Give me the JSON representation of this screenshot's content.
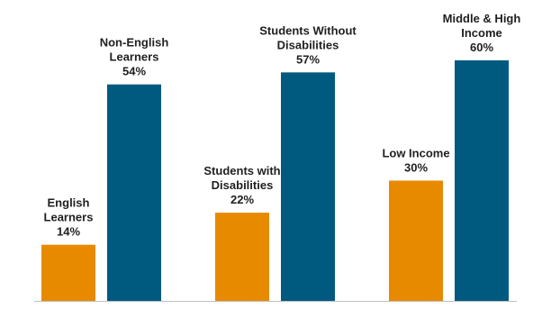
{
  "chart_data": {
    "type": "bar",
    "title": "",
    "xlabel": "",
    "ylabel": "",
    "ylim": [
      0,
      60
    ],
    "grid": false,
    "legend": "none",
    "colors": {
      "orange": "#E78A00",
      "blue": "#005A80",
      "axis": "#bfbfbf"
    },
    "groups": [
      {
        "bars": [
          {
            "label_lines": [
              "English",
              "Learners"
            ],
            "value": 14,
            "value_label": "14%",
            "color": "orange"
          },
          {
            "label_lines": [
              "Non-English",
              "Learners"
            ],
            "value": 54,
            "value_label": "54%",
            "color": "blue"
          }
        ]
      },
      {
        "bars": [
          {
            "label_lines": [
              "Students with",
              "Disabilities"
            ],
            "value": 22,
            "value_label": "22%",
            "color": "orange"
          },
          {
            "label_lines": [
              "Students Without",
              "Disabilities"
            ],
            "value": 57,
            "value_label": "57%",
            "color": "blue"
          }
        ]
      },
      {
        "bars": [
          {
            "label_lines": [
              "Low Income"
            ],
            "value": 30,
            "value_label": "30%",
            "color": "orange"
          },
          {
            "label_lines": [
              "Middle & High",
              "Income"
            ],
            "value": 60,
            "value_label": "60%",
            "color": "blue"
          }
        ]
      }
    ]
  }
}
